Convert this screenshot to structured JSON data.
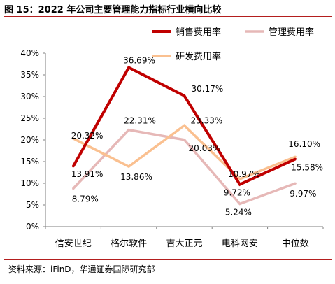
{
  "figure": {
    "title": "图 15：2022 年公司主要管理能力指标行业横向比较",
    "source": "资料来源：iFinD，华通证券国际研究部"
  },
  "chart_data": {
    "type": "line",
    "categories": [
      "信安世纪",
      "格尔软件",
      "吉大正元",
      "电科网安",
      "中位数"
    ],
    "y_unit": "%",
    "ylim": [
      0,
      40
    ],
    "yticks": [
      0,
      5,
      10,
      15,
      20,
      25,
      30,
      35,
      40
    ],
    "ytick_labels": [
      "0%",
      "5%",
      "10%",
      "15%",
      "20%",
      "25%",
      "30%",
      "35%",
      "40%"
    ],
    "grid": false,
    "legend_position": "top-right",
    "series": [
      {
        "name": "销售费用率",
        "color": "#c00000",
        "values": [
          13.91,
          36.69,
          30.17,
          9.72,
          15.58
        ],
        "labels": [
          "13.91%",
          "36.69%",
          "30.17%",
          "9.72%",
          "15.58%"
        ]
      },
      {
        "name": "管理费用率",
        "color": "#e6b8b7",
        "values": [
          8.79,
          22.31,
          20.03,
          5.24,
          9.97
        ],
        "labels": [
          "8.79%",
          "22.31%",
          "20.03%",
          "5.24%",
          "9.97%"
        ]
      },
      {
        "name": "研发费用率",
        "color": "#fac090",
        "values": [
          20.32,
          13.86,
          23.33,
          10.97,
          16.1
        ],
        "labels": [
          "20.32%",
          "13.86%",
          "23.33%",
          "10.97%",
          "16.10%"
        ]
      }
    ]
  }
}
